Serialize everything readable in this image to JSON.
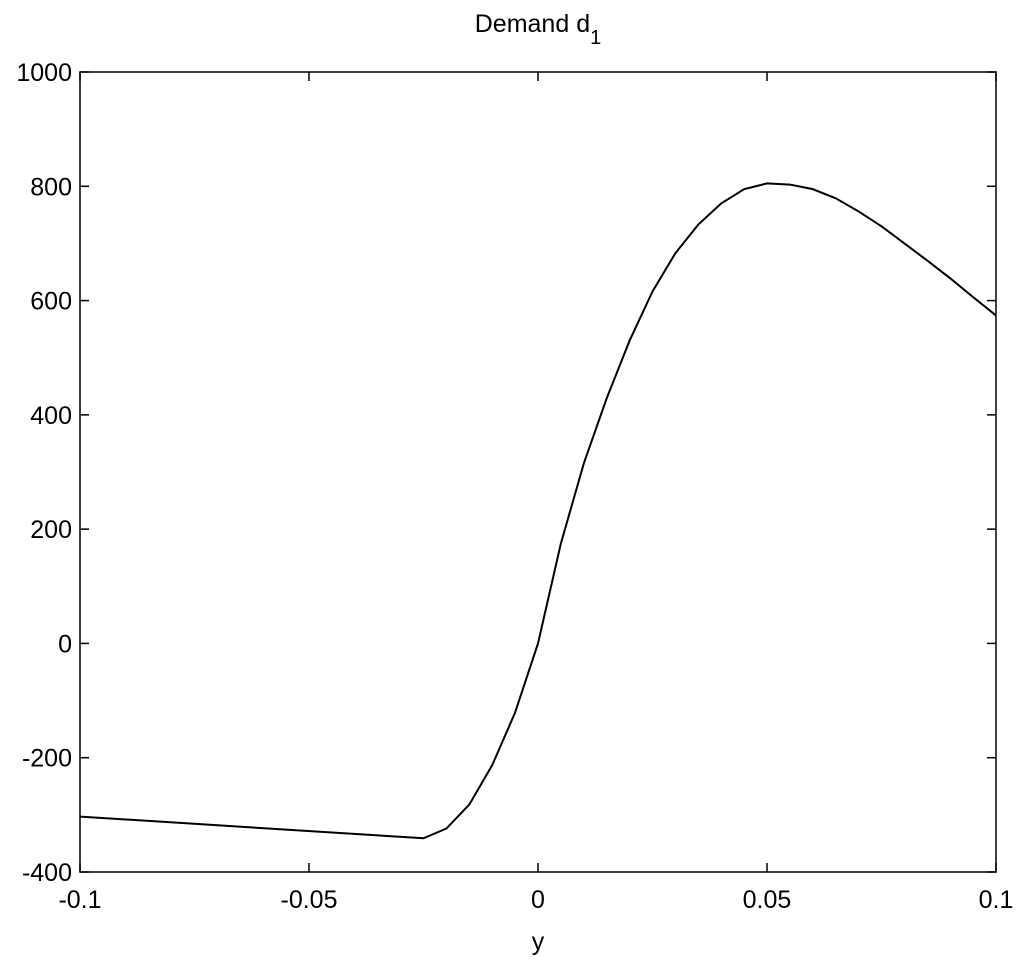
{
  "chart_data": {
    "type": "line",
    "title": "Demand d",
    "title_subscript": "1",
    "x_label": "y",
    "x": [
      -0.1,
      -0.025,
      -0.02,
      -0.015,
      -0.01,
      -0.005,
      0,
      0.005,
      0.01,
      0.015,
      0.02,
      0.025,
      0.03,
      0.035,
      0.04,
      0.045,
      0.05,
      0.055,
      0.06,
      0.065,
      0.07,
      0.075,
      0.08,
      0.085,
      0.09,
      0.095,
      0.1
    ],
    "series": [
      {
        "color": "#000000",
        "values": [
          -303,
          -341,
          -324,
          -282,
          -213,
          -121,
          0,
          175,
          315,
          429,
          530,
          616,
          683,
          733,
          770,
          795,
          805,
          803,
          795,
          779,
          756,
          730,
          700,
          670,
          639,
          606,
          574
        ]
      }
    ],
    "xlim": [
      -0.1,
      0.1
    ],
    "xticks": [
      -0.1,
      -0.05,
      0,
      0.05,
      0.1
    ],
    "ylim": [
      -400,
      1000
    ],
    "yticks": [
      -400,
      -200,
      0,
      200,
      400,
      600,
      800,
      1000
    ],
    "grid": false
  }
}
